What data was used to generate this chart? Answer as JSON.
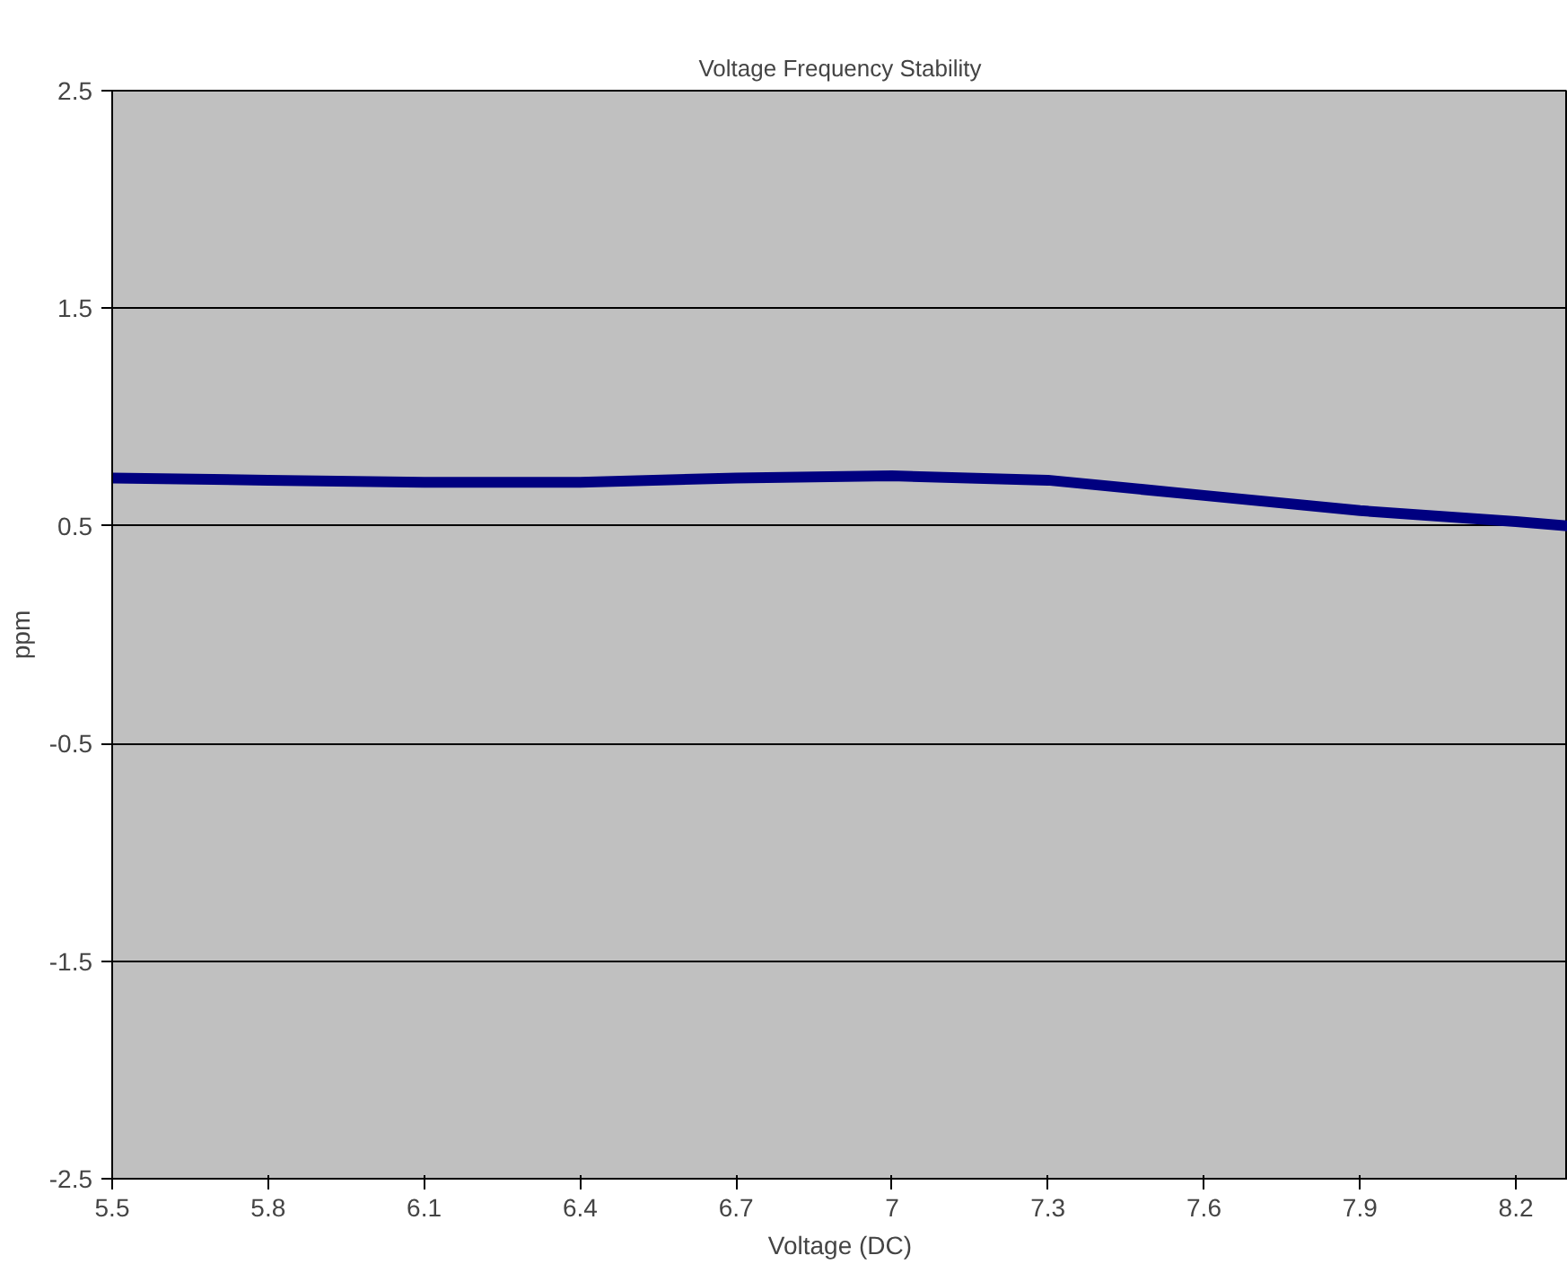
{
  "chart_data": {
    "type": "line",
    "title": "Voltage Frequency Stability",
    "xlabel": "Voltage (DC)",
    "ylabel": "ppm",
    "x": [
      5.5,
      5.8,
      6.1,
      6.4,
      6.7,
      7.0,
      7.3,
      7.6,
      7.9,
      8.2,
      8.3
    ],
    "series": [
      {
        "color": "#000080",
        "values": [
          0.72,
          0.71,
          0.7,
          0.7,
          0.72,
          0.73,
          0.71,
          0.64,
          0.57,
          0.52,
          0.5
        ]
      }
    ],
    "xlim": [
      5.5,
      8.3
    ],
    "xticks": [
      5.5,
      5.8,
      6.1,
      6.4,
      6.7,
      7,
      7.3,
      7.6,
      7.9,
      8.2
    ],
    "ylim": [
      -2.5,
      2.5
    ],
    "yticks": [
      -2.5,
      -1.5,
      -0.5,
      0.5,
      1.5,
      2.5
    ],
    "grid": "y",
    "marker": "none",
    "line_style": "solid"
  }
}
